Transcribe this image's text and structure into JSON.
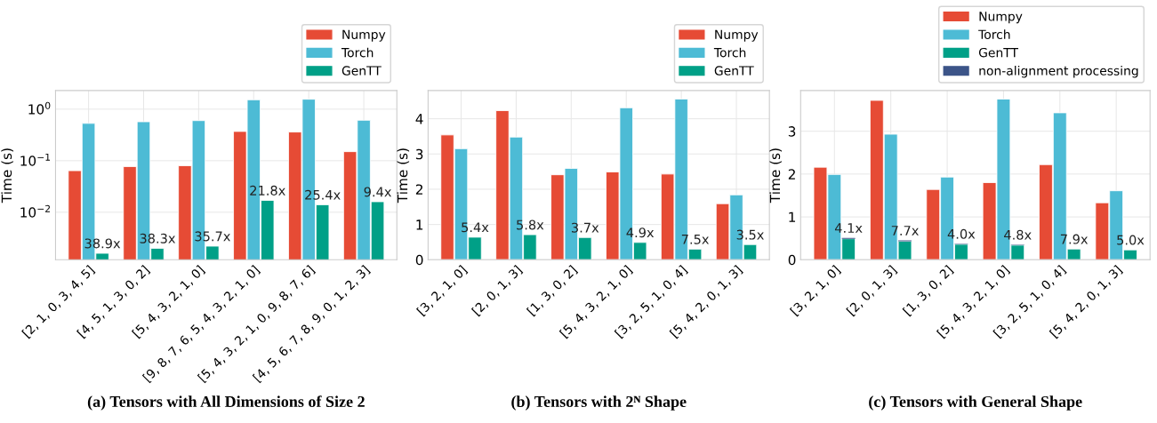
{
  "chart_data": [
    {
      "type": "bar",
      "title": "(a) Tensors with All Dimensions of Size 2",
      "ylabel": "Time (s)",
      "log": true,
      "categories": [
        "[2, 1, 0, 3, 4, 5]",
        "[4, 5, 1, 3, 0, 2]",
        "[5, 4, 3, 2, 1, 0]",
        "[9, 8, 7, 6, 5, 4, 3, 2, 1, 0]",
        "[5, 4, 3, 2, 1, 0, 9, 8, 7, 6]",
        "[4, 5, 6, 7, 8, 9, 0, 1, 2, 3]"
      ],
      "series": [
        {
          "name": "Numpy",
          "color": "#e64b35",
          "values": [
            0.064,
            0.077,
            0.08,
            0.37,
            0.36,
            0.15
          ]
        },
        {
          "name": "Torch",
          "color": "#4dbbd5",
          "values": [
            0.53,
            0.57,
            0.6,
            1.52,
            1.56,
            0.61
          ]
        },
        {
          "name": "GenTT",
          "color": "#00a087",
          "values": [
            0.0016,
            0.002,
            0.0022,
            0.017,
            0.014,
            0.016
          ]
        }
      ],
      "annotations": [
        "38.9x",
        "38.3x",
        "35.7x",
        "21.8x",
        "25.4x",
        "9.4x"
      ],
      "ylim": [
        0.0012,
        2.3
      ],
      "yticks": [
        {
          "value": 0.01,
          "label": "10$^{−2}$"
        },
        {
          "value": 0.1,
          "label": "10$^{−1}$"
        },
        {
          "value": 1,
          "label": "10$^{0}$"
        }
      ],
      "grid": true,
      "legend": "top right"
    },
    {
      "type": "bar",
      "title": "(b) Tensors with 2ᴺ Shape",
      "ylabel": "Time (s)",
      "categories": [
        "[3, 2, 1, 0]",
        "[2, 0, 1, 3]",
        "[1, 3, 0, 2]",
        "[5, 4, 3, 2, 1, 0]",
        "[3, 2, 5, 1, 0, 4]",
        "[5, 4, 2, 0, 1, 3]"
      ],
      "series": [
        {
          "name": "Numpy",
          "color": "#e64b35",
          "values": [
            3.54,
            4.23,
            2.41,
            2.49,
            2.43,
            1.59
          ]
        },
        {
          "name": "Torch",
          "color": "#4dbbd5",
          "values": [
            3.15,
            3.48,
            2.59,
            4.31,
            4.56,
            1.84
          ]
        },
        {
          "name": "GenTT",
          "color": "#00a087",
          "values": [
            0.64,
            0.71,
            0.63,
            0.49,
            0.3,
            0.43
          ]
        }
      ],
      "annotations": [
        "5.4x",
        "5.8x",
        "3.7x",
        "4.9x",
        "7.5x",
        "3.5x"
      ],
      "ylim": [
        0,
        4.8
      ],
      "yticks": [
        0,
        1,
        2,
        3,
        4
      ],
      "grid": true,
      "legend": "top right"
    },
    {
      "type": "bar",
      "title": "(c) Tensors with General Shape",
      "ylabel": "Time (s)",
      "categories": [
        "[3, 2, 1, 0]",
        "[2, 0, 1, 3]",
        "[1, 3, 0, 2]",
        "[5, 4, 3, 2, 1, 0]",
        "[3, 2, 5, 1, 0, 4]",
        "[5, 4, 2, 0, 1, 3]"
      ],
      "series": [
        {
          "name": "Numpy",
          "color": "#e64b35",
          "values": [
            2.16,
            3.72,
            1.64,
            1.8,
            2.22,
            1.33
          ]
        },
        {
          "name": "Torch",
          "color": "#4dbbd5",
          "values": [
            1.99,
            2.93,
            1.93,
            3.75,
            3.43,
            1.61
          ]
        },
        {
          "name": "GenTT",
          "color": "#00a087",
          "values": [
            0.49,
            0.43,
            0.36,
            0.34,
            0.25,
            0.23
          ]
        },
        {
          "name": "non-alignment processing",
          "color": "#3c5488",
          "values": [
            0.02,
            0.02,
            0.01,
            0.01,
            null,
            null
          ],
          "base": [
            0.49,
            0.43,
            0.36,
            0.34,
            null,
            null
          ]
        }
      ],
      "annotations": [
        "4.1x",
        "7.7x",
        "4.0x",
        "4.8x",
        "7.9x",
        "5.0x"
      ],
      "ylim": [
        0,
        3.95
      ],
      "yticks": [
        0,
        1,
        2,
        3
      ],
      "grid": true,
      "legend": "top right"
    }
  ]
}
